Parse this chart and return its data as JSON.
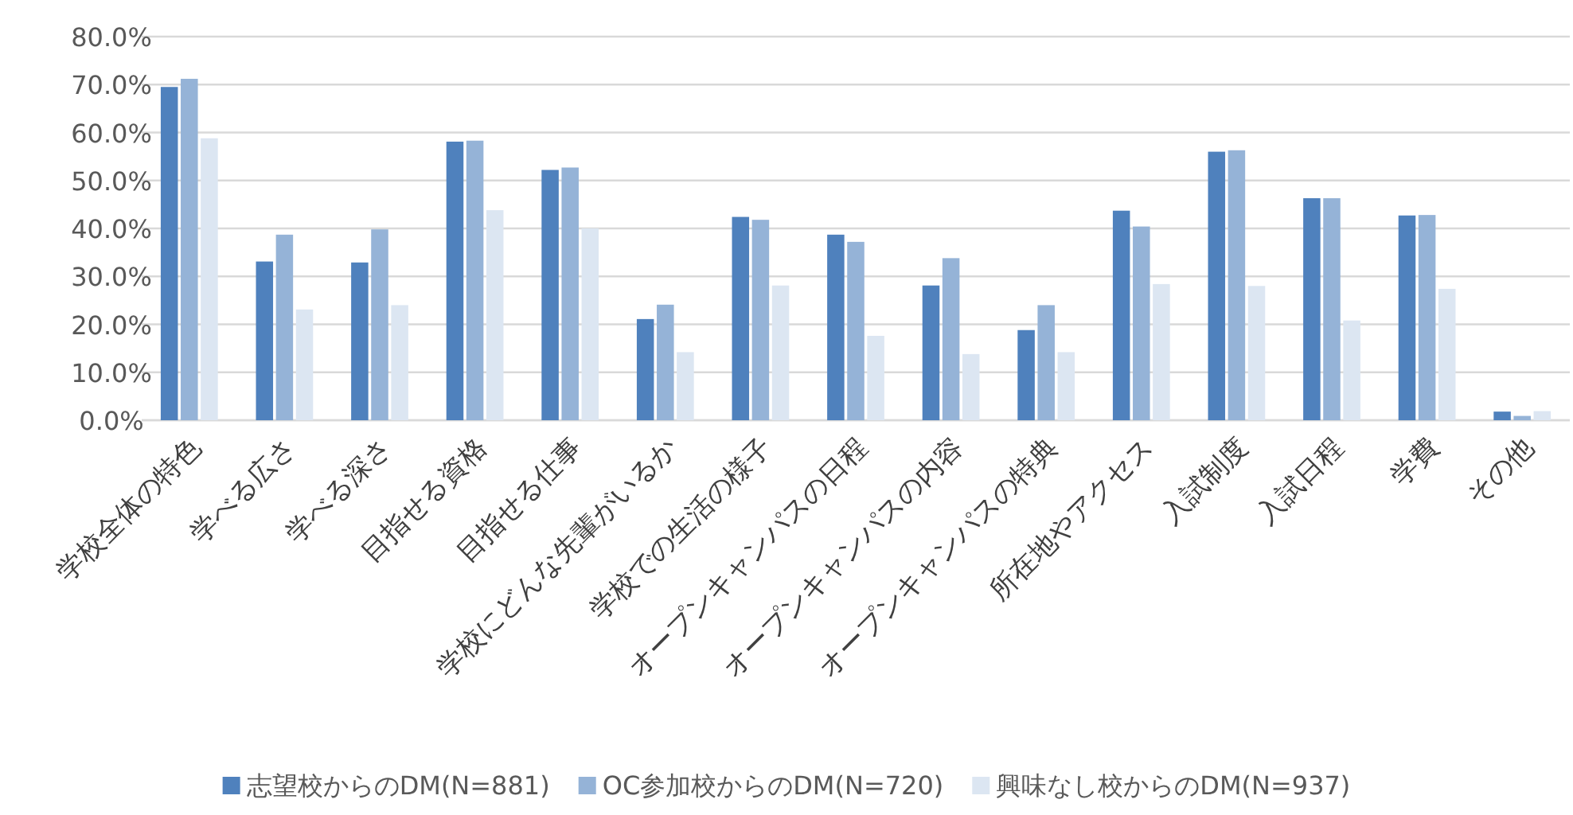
{
  "chart_data": {
    "type": "bar",
    "categories": [
      "学校全体の特色",
      "学べる広さ",
      "学べる深さ",
      "目指せる資格",
      "目指せる仕事",
      "学校にどんな先輩がいるか",
      "学校での生活の様子",
      "オープンキャンパスの日程",
      "オープンキャンパスの内容",
      "オープンキャンパスの特典",
      "所在地やアクセス",
      "入試制度",
      "入試日程",
      "学費",
      "その他"
    ],
    "series": [
      {
        "name": "志望校からのDM(N=881)",
        "color": "#4f81bd",
        "values": [
          69.5,
          33.1,
          32.9,
          58.1,
          52.2,
          21.1,
          42.4,
          38.7,
          28.1,
          18.8,
          43.7,
          56.0,
          46.3,
          42.7,
          1.8
        ]
      },
      {
        "name": "OC参加校からのDM(N=720)",
        "color": "#95b3d7",
        "values": [
          71.2,
          38.7,
          39.8,
          58.3,
          52.7,
          24.1,
          41.8,
          37.2,
          33.8,
          24.0,
          40.4,
          56.3,
          46.3,
          42.8,
          0.9
        ]
      },
      {
        "name": "興味なし校からのDM(N=937)",
        "color": "#dce6f2",
        "values": [
          58.8,
          23.1,
          24.0,
          43.8,
          40.0,
          14.2,
          28.1,
          17.6,
          13.8,
          14.2,
          28.4,
          28.0,
          20.8,
          27.4,
          1.9
        ]
      }
    ],
    "ylim": [
      0,
      80
    ],
    "yticks": [
      {
        "value": 0,
        "label": "0.0%"
      },
      {
        "value": 10,
        "label": "10.0%"
      },
      {
        "value": 20,
        "label": "20.0%"
      },
      {
        "value": 30,
        "label": "30.0%"
      },
      {
        "value": 40,
        "label": "40.0%"
      },
      {
        "value": 50,
        "label": "50.0%"
      },
      {
        "value": 60,
        "label": "60.0%"
      },
      {
        "value": 70,
        "label": "70.0%"
      },
      {
        "value": 80,
        "label": "80.0%"
      }
    ],
    "grid": "y",
    "legend": "bottom"
  }
}
